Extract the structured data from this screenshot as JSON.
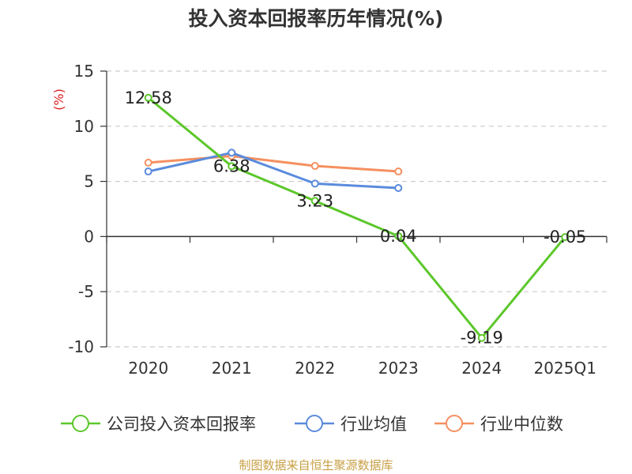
{
  "chart_data": {
    "type": "line",
    "title": "投入资本回报率历年情况(%)",
    "ylabel": "(%)",
    "xlabel": "",
    "categories": [
      "2020",
      "2021",
      "2022",
      "2023",
      "2024",
      "2025Q1"
    ],
    "ylim": [
      -10,
      15
    ],
    "yticks": [
      15,
      10,
      5,
      0,
      -5,
      -10
    ],
    "grid": true,
    "legend_position": "bottom",
    "series": [
      {
        "name": "公司投入资本回报率",
        "color": "#5cc72b",
        "values": [
          12.58,
          6.38,
          3.23,
          0.04,
          -9.19,
          -0.05
        ],
        "labels": true
      },
      {
        "name": "行业均值",
        "color": "#5b8bdc",
        "values": [
          5.9,
          7.6,
          4.8,
          4.4,
          null,
          null
        ],
        "labels": false
      },
      {
        "name": "行业中位数",
        "color": "#f59060",
        "values": [
          6.7,
          7.3,
          6.4,
          5.9,
          null,
          null
        ],
        "labels": false
      }
    ]
  },
  "source": "制图数据来自恒生聚源数据库"
}
